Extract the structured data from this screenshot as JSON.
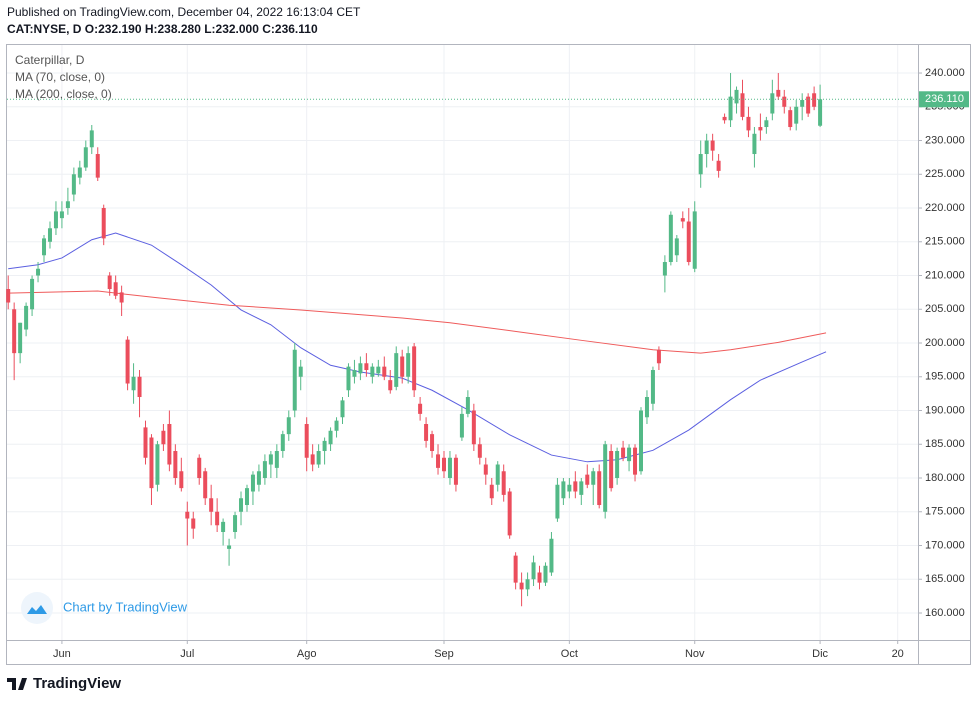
{
  "chart_data": {
    "type": "candlestick",
    "header": "Published on TradingView.com, December 04, 2022 16:13:04 CET",
    "subheader": "CAT:NYSE, D  O:232.190 H:238.280 L:232.000 C:236.110",
    "title": "Caterpillar, D",
    "watermark": "Chart by TradingView",
    "brand": "TradingView",
    "up_color": "#53b987",
    "down_color": "#eb4d5c",
    "ohlc": [
      [
        208,
        210,
        205,
        206
      ],
      [
        205,
        206,
        194.5,
        198.5
      ],
      [
        198.5,
        203,
        197,
        203
      ],
      [
        202,
        206,
        201,
        205.5
      ],
      [
        205,
        210,
        204,
        209.5
      ],
      [
        210,
        212,
        209,
        211
      ],
      [
        213,
        216,
        212,
        215.5
      ],
      [
        215,
        218,
        214,
        217
      ],
      [
        217,
        221,
        216,
        219.5
      ],
      [
        218.5,
        221,
        217,
        219.5
      ],
      [
        220,
        223,
        219,
        221
      ],
      [
        222,
        226,
        221,
        225
      ],
      [
        224.5,
        227,
        223.5,
        226
      ],
      [
        226,
        230,
        225.5,
        229
      ],
      [
        229,
        232.3,
        228,
        231.5
      ],
      [
        228,
        229,
        224,
        224.5
      ],
      [
        220,
        220.5,
        214.5,
        215.5
      ],
      [
        210,
        210.5,
        207,
        208
      ],
      [
        209,
        210,
        206.5,
        207
      ],
      [
        207.5,
        208.5,
        204,
        206
      ],
      [
        200.5,
        201,
        193,
        194
      ],
      [
        193,
        197,
        191,
        195
      ],
      [
        195,
        196,
        189,
        192
      ],
      [
        187.5,
        188.5,
        182,
        183
      ],
      [
        186,
        186.5,
        176,
        178.5
      ],
      [
        179,
        185.5,
        178,
        185
      ],
      [
        187,
        188,
        184,
        185
      ],
      [
        188,
        190,
        181,
        182
      ],
      [
        184,
        185,
        179,
        180
      ],
      [
        181,
        183,
        178,
        178.5
      ],
      [
        175,
        176.5,
        170,
        174
      ],
      [
        174,
        175,
        171,
        172.5
      ],
      [
        183,
        183.5,
        179,
        180
      ],
      [
        181,
        181.5,
        176,
        177
      ],
      [
        177,
        179,
        173,
        175
      ],
      [
        175,
        177,
        172,
        173
      ],
      [
        172,
        174,
        170,
        173.5
      ],
      [
        169.5,
        171,
        167,
        170
      ],
      [
        172,
        175,
        171,
        174.5
      ],
      [
        175,
        178,
        173,
        177
      ],
      [
        176,
        179,
        175,
        178.5
      ],
      [
        178,
        181,
        176,
        180.5
      ],
      [
        179,
        182,
        178,
        181
      ],
      [
        180,
        183.5,
        179,
        182.5
      ],
      [
        182,
        184,
        180,
        183.5
      ],
      [
        181.5,
        185,
        180,
        184
      ],
      [
        184,
        187,
        183,
        186.5
      ],
      [
        186.5,
        190,
        185.5,
        189
      ],
      [
        190,
        200,
        189,
        199
      ],
      [
        195,
        197.5,
        193,
        196.5
      ],
      [
        188,
        189,
        181,
        183
      ],
      [
        183.5,
        185,
        181,
        182
      ],
      [
        182,
        185,
        181.5,
        184
      ],
      [
        184,
        186,
        182,
        185.5
      ],
      [
        185,
        187.5,
        184,
        187
      ],
      [
        187,
        189,
        186,
        188.5
      ],
      [
        189,
        192,
        188,
        191.5
      ],
      [
        193,
        197,
        192,
        196.5
      ],
      [
        195,
        197.5,
        194,
        196
      ],
      [
        195.5,
        198,
        194.5,
        197
      ],
      [
        197,
        198.5,
        195,
        196
      ],
      [
        195,
        197,
        194,
        196.5
      ],
      [
        195.5,
        197.5,
        195,
        196.5
      ],
      [
        196.5,
        198,
        194.5,
        195
      ],
      [
        194.5,
        196,
        192.5,
        193
      ],
      [
        193.5,
        199.5,
        193,
        198.5
      ],
      [
        198,
        199,
        194,
        195
      ],
      [
        195,
        199.5,
        194,
        198.5
      ],
      [
        199.5,
        200,
        192,
        193
      ],
      [
        191,
        192,
        188.5,
        189.5
      ],
      [
        188,
        189,
        184.5,
        185.5
      ],
      [
        186.5,
        187,
        183,
        184
      ],
      [
        183.5,
        185,
        180.5,
        181.5
      ],
      [
        183,
        184,
        180,
        181
      ],
      [
        180,
        184,
        179,
        183
      ],
      [
        183,
        183.5,
        178,
        179
      ],
      [
        186,
        190.5,
        185.5,
        189.5
      ],
      [
        189.5,
        193,
        189,
        192
      ],
      [
        190,
        191,
        184,
        185
      ],
      [
        185,
        186,
        182,
        183
      ],
      [
        182,
        183,
        179,
        180.5
      ],
      [
        179,
        180,
        176,
        177
      ],
      [
        179,
        182.5,
        178,
        182
      ],
      [
        181,
        182,
        176.5,
        177.5
      ],
      [
        178,
        178.5,
        171,
        171.5
      ],
      [
        168.5,
        169,
        163.5,
        164.5
      ],
      [
        164.5,
        166,
        161,
        163.5
      ],
      [
        163.5,
        166,
        162.5,
        165
      ],
      [
        165,
        168.5,
        164,
        167.5
      ],
      [
        166,
        167,
        163.5,
        164.5
      ],
      [
        164.5,
        167.5,
        164,
        167
      ],
      [
        166,
        172,
        165.5,
        171
      ],
      [
        174,
        180,
        173.5,
        179
      ],
      [
        177,
        180,
        176,
        179.5
      ],
      [
        178,
        180,
        177,
        179
      ],
      [
        179.5,
        181,
        177,
        178
      ],
      [
        177.5,
        180,
        176,
        179.5
      ],
      [
        180.5,
        182,
        178.5,
        179
      ],
      [
        179,
        181.5,
        176,
        181
      ],
      [
        181,
        182,
        175.5,
        176
      ],
      [
        175,
        185.5,
        174,
        185
      ],
      [
        184,
        185,
        178,
        178.5
      ],
      [
        180,
        184.5,
        179,
        184
      ],
      [
        184.5,
        185.5,
        182.5,
        183
      ],
      [
        182.5,
        185,
        181,
        184.5
      ],
      [
        184.5,
        185,
        179.5,
        180.5
      ],
      [
        181,
        190.5,
        180.5,
        190
      ],
      [
        189,
        193,
        188,
        192
      ],
      [
        191,
        196.5,
        190,
        196
      ],
      [
        199,
        199.5,
        196,
        197
      ],
      [
        210,
        213,
        207.5,
        212
      ],
      [
        212,
        219.5,
        211.5,
        219
      ],
      [
        213,
        216,
        212,
        215.5
      ],
      [
        218.5,
        219.5,
        217,
        218
      ],
      [
        218,
        220,
        211.5,
        212
      ],
      [
        211,
        221,
        210.5,
        219.5
      ],
      [
        225,
        230,
        223,
        228
      ],
      [
        228,
        231,
        226,
        230
      ],
      [
        230,
        231,
        227,
        228.5
      ],
      [
        227,
        228,
        224.5,
        225.5
      ],
      [
        233.5,
        234,
        232.5,
        233
      ],
      [
        233,
        240,
        232,
        236.5
      ],
      [
        235.5,
        238,
        234,
        237.5
      ],
      [
        237,
        239,
        233,
        233.5
      ],
      [
        233.5,
        235,
        230.5,
        231.5
      ],
      [
        228,
        232,
        226,
        231
      ],
      [
        232,
        234,
        230,
        231.5
      ],
      [
        232,
        233.5,
        231,
        233
      ],
      [
        234,
        239,
        233,
        237
      ],
      [
        237.5,
        240,
        236,
        236.5
      ],
      [
        236.5,
        237.5,
        234,
        235
      ],
      [
        234.5,
        235,
        231.5,
        232
      ],
      [
        232.5,
        236,
        231.5,
        235
      ],
      [
        235,
        237,
        233,
        236
      ],
      [
        236.5,
        237,
        233.5,
        234
      ],
      [
        237,
        238,
        234.5,
        235
      ],
      [
        232.19,
        238.28,
        232,
        236.11
      ]
    ],
    "last_price_label": "236.110",
    "series": [
      {
        "name": "MA (70, close, 0)",
        "color": "#5b5fe0",
        "x": [
          0,
          5,
          9,
          14,
          18,
          24,
          29,
          34,
          39,
          44,
          49,
          54,
          59,
          66,
          71,
          77,
          84,
          91,
          97,
          102,
          108,
          114,
          121,
          126,
          133,
          137
        ],
        "values": [
          211,
          211.6,
          212.6,
          215.3,
          216.3,
          214.5,
          211.6,
          208.6,
          204.9,
          202.7,
          199.3,
          196.7,
          195.7,
          194.8,
          193,
          190.1,
          186.4,
          183.4,
          182.4,
          182.7,
          184.1,
          187.1,
          191.6,
          194.5,
          197.2,
          198.7
        ]
      },
      {
        "name": "MA (200, close, 0)",
        "color": "#ef5b5b",
        "x": [
          0,
          15,
          25,
          37,
          49,
          66,
          74,
          86,
          96,
          108,
          116,
          121,
          129,
          137
        ],
        "values": [
          207.4,
          207.7,
          206.7,
          205.6,
          204.9,
          203.7,
          203,
          201.6,
          200.4,
          199,
          198.5,
          199,
          200.1,
          201.5
        ]
      }
    ],
    "xlim": [
      -0.2,
      152.4
    ],
    "xticks": [
      {
        "value": 9,
        "label": "Jun"
      },
      {
        "value": 30,
        "label": "Jul"
      },
      {
        "value": 50,
        "label": "Ago"
      },
      {
        "value": 73,
        "label": "Sep"
      },
      {
        "value": 94,
        "label": "Oct"
      },
      {
        "value": 115,
        "label": "Nov"
      },
      {
        "value": 136,
        "label": "Dic"
      },
      {
        "value": 149,
        "label": "20"
      }
    ],
    "ylim": [
      156,
      244.3
    ],
    "yticks": [
      {
        "value": 160,
        "label": "160.000"
      },
      {
        "value": 165,
        "label": "165.000"
      },
      {
        "value": 170,
        "label": "170.000"
      },
      {
        "value": 175,
        "label": "175.000"
      },
      {
        "value": 180,
        "label": "180.000"
      },
      {
        "value": 185,
        "label": "185.000"
      },
      {
        "value": 190,
        "label": "190.000"
      },
      {
        "value": 195,
        "label": "195.000"
      },
      {
        "value": 200,
        "label": "200.000"
      },
      {
        "value": 205,
        "label": "205.000"
      },
      {
        "value": 210,
        "label": "210.000"
      },
      {
        "value": 215,
        "label": "215.000"
      },
      {
        "value": 220,
        "label": "220.000"
      },
      {
        "value": 225,
        "label": "225.000"
      },
      {
        "value": 230,
        "label": "230.000"
      },
      {
        "value": 235,
        "label": "235.000"
      },
      {
        "value": 240,
        "label": "240.000"
      }
    ],
    "grid": true
  }
}
